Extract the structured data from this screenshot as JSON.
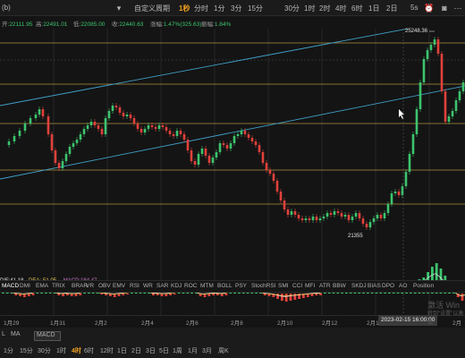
{
  "toolbar": {
    "ticker": "(b)",
    "custom_period": "自定义周期",
    "periods": [
      "1秒",
      "分时",
      "1分",
      "3分",
      "15分",
      "30分",
      "1时",
      "2时",
      "4时",
      "6时",
      "1日",
      "2日"
    ],
    "active_period": "1秒",
    "speed": "5s",
    "icons": [
      "dropdown-icon",
      "alarm-icon",
      "camera-icon",
      "more-icon"
    ]
  },
  "info": {
    "open_label": "开:",
    "open": "22111.95",
    "high_label": "高:",
    "high": "22491.01",
    "low_label": "低:",
    "low": "22085.00",
    "close_label": "收:",
    "close": "22440.63",
    "change_label": "涨幅:",
    "change": "1.47%(325.63)",
    "amplitude_label": "振幅:",
    "amplitude": "1.84%"
  },
  "chart": {
    "high_marker": "25248.36",
    "low_marker": "21355",
    "indicator_values": {
      "dif": "DIF:41.18",
      "dea": "DEA:-51.05",
      "macd": "MACD:184.47"
    },
    "colors": {
      "up": "#3cc46e",
      "down": "#e0413b",
      "channel": "#3fa0c8",
      "level": "#d8b24a",
      "dif": "#e8e8e8",
      "dea": "#e8c85a"
    },
    "candles_up_down_pattern": "mixed"
  },
  "indicators": {
    "items": [
      "MACD",
      "DMI",
      "EMA",
      "TRIX",
      "BRAR",
      "VR",
      "OBV",
      "EMV",
      "RSI",
      "WR",
      "SAR",
      "KDJ",
      "ROC",
      "MTM",
      "BOLL",
      "PSY",
      "StochRSI",
      "SMI",
      "CCI",
      "MFI",
      "ATR",
      "BBW",
      "SKDJ",
      "BIAS",
      "DPO",
      "AO",
      "Position"
    ],
    "active": "MACD"
  },
  "dates": {
    "labels": [
      "1月29",
      "1月31",
      "2月2",
      "2月4",
      "2月6",
      "2月8",
      "2月10",
      "2月12",
      "2月14",
      "2月"
    ],
    "cursor": "2023-02-15 16:00:00"
  },
  "bottom": {
    "row1": [
      "MA",
      "MACD"
    ],
    "row1_prefix": "L",
    "row2": [
      "1分",
      "15分",
      "30分",
      "1时",
      "4时",
      "6时",
      "12时",
      "1日",
      "2日",
      "3日",
      "5日",
      "1周",
      "1月",
      "3月",
      "周K"
    ],
    "active_period": "4时"
  },
  "watermark": {
    "line1": "激活 Win",
    "line2": "转到\"设置\"以激活"
  }
}
